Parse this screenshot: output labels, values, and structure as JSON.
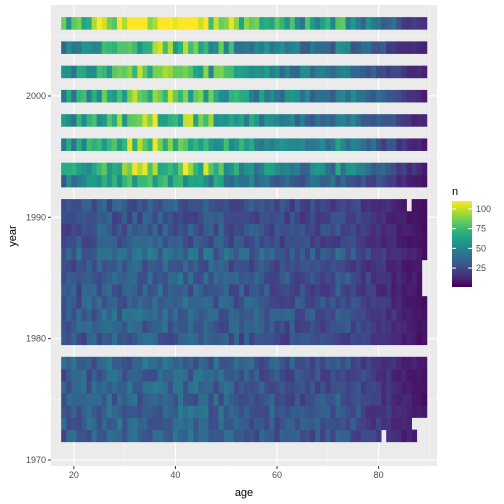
{
  "chart_data": {
    "type": "heatmap",
    "xlabel": "age",
    "ylabel": "year",
    "x_ticks": [
      20,
      40,
      60,
      80
    ],
    "y_ticks": [
      1970,
      1980,
      1990,
      2000
    ],
    "xlim": [
      15.5,
      91.5
    ],
    "ylim": [
      1969.5,
      2007.5
    ],
    "x_range": [
      18,
      89
    ],
    "legend": {
      "title": "n",
      "breaks": [
        25,
        50,
        75,
        100
      ],
      "limits": [
        1,
        110
      ],
      "position": "right",
      "colors": [
        "#440154",
        "#482878",
        "#3e4a89",
        "#31688e",
        "#26828e",
        "#1f9e89",
        "#35b779",
        "#6ece58",
        "#b5de2b",
        "#fde725"
      ]
    },
    "years_present": [
      1972,
      1973,
      1974,
      1975,
      1976,
      1977,
      1978,
      1980,
      1981,
      1982,
      1983,
      1984,
      1985,
      1986,
      1987,
      1988,
      1989,
      1990,
      1991,
      1993,
      1994,
      1996,
      1998,
      2000,
      2002,
      2004,
      2006
    ],
    "missing_cells": [
      [
        86,
        1991
      ],
      [
        89,
        1984
      ],
      [
        89,
        1985
      ],
      [
        89,
        1986
      ],
      [
        81,
        1972
      ],
      [
        88,
        1972
      ],
      [
        89,
        1972
      ],
      [
        87,
        1973
      ],
      [
        88,
        1973
      ],
      [
        89,
        1973
      ]
    ],
    "year_mean_n": {
      "1972": 32,
      "1973": 32,
      "1974": 33,
      "1975": 31,
      "1976": 32,
      "1977": 31,
      "1978": 33,
      "1980": 28,
      "1981": 30,
      "1982": 33,
      "1983": 30,
      "1984": 29,
      "1985": 31,
      "1986": 28,
      "1987": 34,
      "1988": 27,
      "1989": 28,
      "1990": 26,
      "1991": 28,
      "1993": 40,
      "1994": 55,
      "1996": 52,
      "1998": 52,
      "2000": 50,
      "2002": 50,
      "2004": 48,
      "2006": 70
    }
  }
}
